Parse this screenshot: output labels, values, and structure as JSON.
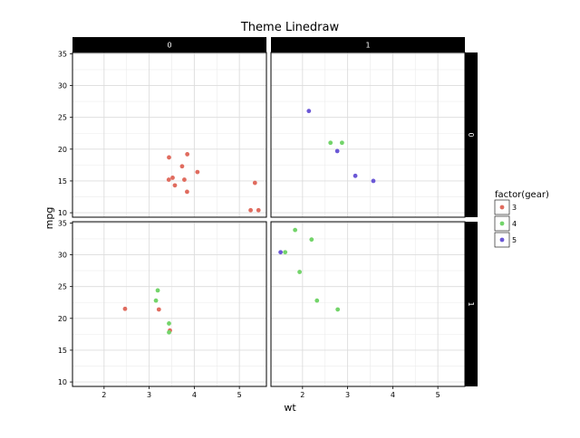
{
  "chart_data": {
    "type": "scatter",
    "title": "Theme Linedraw",
    "xlabel": "wt",
    "ylabel": "mpg",
    "xlim": [
      1.3,
      5.6
    ],
    "ylim": [
      9.3,
      35.2
    ],
    "x_ticks": [
      2,
      3,
      4,
      5
    ],
    "y_ticks": [
      10,
      15,
      20,
      25,
      30,
      35
    ],
    "grid": true,
    "facet_cols": {
      "variable": "am",
      "levels": [
        "0",
        "1"
      ]
    },
    "facet_rows": {
      "variable": "vs",
      "levels": [
        "0",
        "1"
      ]
    },
    "legend": {
      "title": "factor(gear)",
      "position": "right",
      "entries": [
        {
          "label": "3",
          "color": "#E06C5F"
        },
        {
          "label": "4",
          "color": "#73D46A"
        },
        {
          "label": "5",
          "color": "#6B58D6"
        }
      ]
    },
    "panels": [
      {
        "row": "0",
        "col": "0",
        "points": [
          {
            "x": 3.44,
            "y": 18.7,
            "gear": "3"
          },
          {
            "x": 3.57,
            "y": 14.3,
            "gear": "3"
          },
          {
            "x": 4.07,
            "y": 16.4,
            "gear": "3"
          },
          {
            "x": 3.73,
            "y": 17.3,
            "gear": "3"
          },
          {
            "x": 3.78,
            "y": 15.2,
            "gear": "3"
          },
          {
            "x": 5.25,
            "y": 10.4,
            "gear": "3"
          },
          {
            "x": 5.424,
            "y": 10.4,
            "gear": "3"
          },
          {
            "x": 5.345,
            "y": 14.7,
            "gear": "3"
          },
          {
            "x": 3.52,
            "y": 15.5,
            "gear": "3"
          },
          {
            "x": 3.435,
            "y": 15.2,
            "gear": "3"
          },
          {
            "x": 3.84,
            "y": 13.3,
            "gear": "3"
          },
          {
            "x": 3.845,
            "y": 19.2,
            "gear": "3"
          }
        ]
      },
      {
        "row": "0",
        "col": "1",
        "points": [
          {
            "x": 2.62,
            "y": 21.0,
            "gear": "4"
          },
          {
            "x": 2.875,
            "y": 21.0,
            "gear": "4"
          },
          {
            "x": 2.14,
            "y": 26.0,
            "gear": "5"
          },
          {
            "x": 3.17,
            "y": 15.8,
            "gear": "5"
          },
          {
            "x": 2.77,
            "y": 19.7,
            "gear": "5"
          },
          {
            "x": 3.57,
            "y": 15.0,
            "gear": "5"
          }
        ]
      },
      {
        "row": "1",
        "col": "0",
        "points": [
          {
            "x": 3.215,
            "y": 21.4,
            "gear": "3"
          },
          {
            "x": 3.46,
            "y": 18.1,
            "gear": "3"
          },
          {
            "x": 2.465,
            "y": 21.5,
            "gear": "3"
          },
          {
            "x": 3.19,
            "y": 24.4,
            "gear": "4"
          },
          {
            "x": 3.15,
            "y": 22.8,
            "gear": "4"
          },
          {
            "x": 3.44,
            "y": 19.2,
            "gear": "4"
          },
          {
            "x": 3.44,
            "y": 17.8,
            "gear": "4"
          }
        ]
      },
      {
        "row": "1",
        "col": "1",
        "points": [
          {
            "x": 2.32,
            "y": 22.8,
            "gear": "4"
          },
          {
            "x": 2.2,
            "y": 32.4,
            "gear": "4"
          },
          {
            "x": 1.615,
            "y": 30.4,
            "gear": "4"
          },
          {
            "x": 1.835,
            "y": 33.9,
            "gear": "4"
          },
          {
            "x": 1.935,
            "y": 27.3,
            "gear": "4"
          },
          {
            "x": 2.78,
            "y": 21.4,
            "gear": "4"
          },
          {
            "x": 1.513,
            "y": 30.4,
            "gear": "5"
          }
        ]
      }
    ]
  }
}
